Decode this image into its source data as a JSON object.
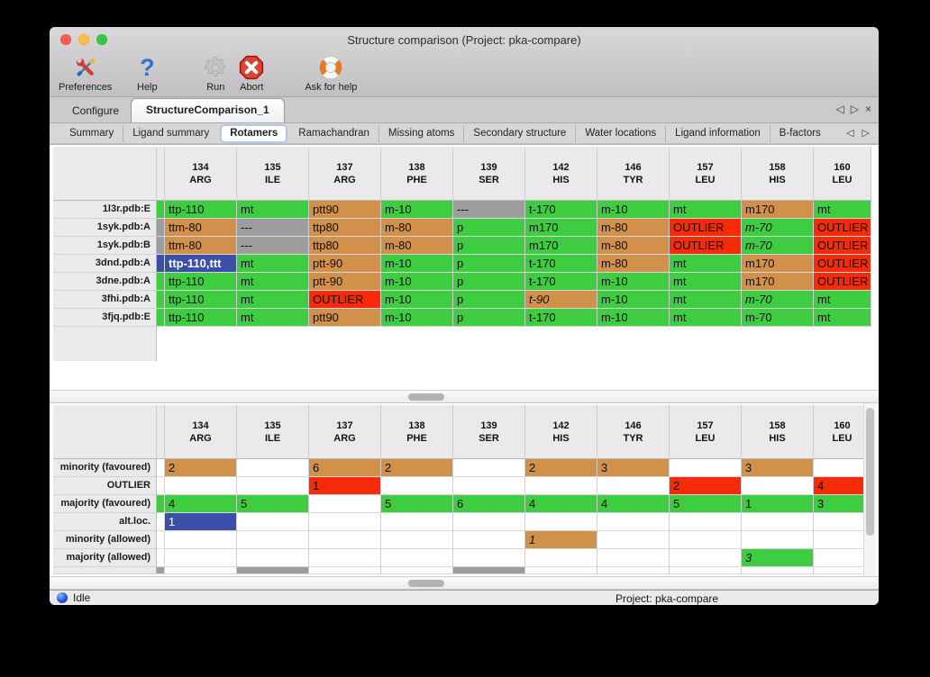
{
  "window": {
    "title": "Structure comparison (Project: pka-compare)"
  },
  "icons": {
    "prev": "◁",
    "next": "▷",
    "close": "×"
  },
  "toolbar": {
    "items": [
      {
        "name": "preferences",
        "label": "Preferences",
        "icon": "tools-icon",
        "disabled": false
      },
      {
        "name": "help",
        "label": "Help",
        "icon": "question-icon",
        "disabled": false
      },
      {
        "name": "run",
        "label": "Run",
        "icon": "gear-icon",
        "disabled": true
      },
      {
        "name": "abort",
        "label": "Abort",
        "icon": "stop-icon",
        "disabled": false
      },
      {
        "name": "ask-for-help",
        "label": "Ask for help",
        "icon": "lifebuoy-icon",
        "disabled": false
      }
    ]
  },
  "tabs": {
    "items": [
      {
        "label": "Configure",
        "active": false
      },
      {
        "label": "StructureComparison_1",
        "active": true
      }
    ]
  },
  "subtabs": {
    "items": [
      {
        "label": "Summary",
        "active": false
      },
      {
        "label": "Ligand summary",
        "active": false
      },
      {
        "label": "Rotamers",
        "active": true
      },
      {
        "label": "Ramachandran",
        "active": false
      },
      {
        "label": "Missing atoms",
        "active": false
      },
      {
        "label": "Secondary structure",
        "active": false
      },
      {
        "label": "Water locations",
        "active": false
      },
      {
        "label": "Ligand information",
        "active": false
      },
      {
        "label": "B-factors",
        "active": false
      }
    ]
  },
  "colors": {
    "green": "#3ecd41",
    "orange": "#d2914a",
    "red": "#f52b0a",
    "gray": "#9d9d9d",
    "blue": "#3c4fa8"
  },
  "columns": [
    {
      "num": "134",
      "res": "ARG"
    },
    {
      "num": "135",
      "res": "ILE"
    },
    {
      "num": "137",
      "res": "ARG"
    },
    {
      "num": "138",
      "res": "PHE"
    },
    {
      "num": "139",
      "res": "SER"
    },
    {
      "num": "142",
      "res": "HIS"
    },
    {
      "num": "146",
      "res": "TYR"
    },
    {
      "num": "157",
      "res": "LEU"
    },
    {
      "num": "158",
      "res": "HIS"
    },
    {
      "num": "160",
      "res": "LEU"
    }
  ],
  "structures_table": {
    "rows": [
      {
        "label": "1l3r.pdb:E",
        "sliver": "green",
        "cells": [
          {
            "t": "ttp-110",
            "c": "green"
          },
          {
            "t": "mt",
            "c": "green"
          },
          {
            "t": "ptt90",
            "c": "orange"
          },
          {
            "t": "m-10",
            "c": "green"
          },
          {
            "t": "---",
            "c": "gray"
          },
          {
            "t": "t-170",
            "c": "green"
          },
          {
            "t": "m-10",
            "c": "green"
          },
          {
            "t": "mt",
            "c": "green"
          },
          {
            "t": "m170",
            "c": "orange"
          },
          {
            "t": "mt",
            "c": "green"
          }
        ]
      },
      {
        "label": "1syk.pdb:A",
        "sliver": "gray",
        "cells": [
          {
            "t": "ttm-80",
            "c": "orange"
          },
          {
            "t": "---",
            "c": "gray"
          },
          {
            "t": "ttp80",
            "c": "orange"
          },
          {
            "t": "m-80",
            "c": "orange"
          },
          {
            "t": "p",
            "c": "green"
          },
          {
            "t": "m170",
            "c": "green"
          },
          {
            "t": "m-80",
            "c": "orange"
          },
          {
            "t": "OUTLIER",
            "c": "red"
          },
          {
            "t": "m-70",
            "c": "green",
            "i": true
          },
          {
            "t": "OUTLIER",
            "c": "red"
          }
        ]
      },
      {
        "label": "1syk.pdb:B",
        "sliver": "gray",
        "cells": [
          {
            "t": "ttm-80",
            "c": "orange"
          },
          {
            "t": "---",
            "c": "gray"
          },
          {
            "t": "ttp80",
            "c": "orange"
          },
          {
            "t": "m-80",
            "c": "orange"
          },
          {
            "t": "p",
            "c": "green"
          },
          {
            "t": "m170",
            "c": "green"
          },
          {
            "t": "m-80",
            "c": "orange"
          },
          {
            "t": "OUTLIER",
            "c": "red"
          },
          {
            "t": "m-70",
            "c": "green",
            "i": true
          },
          {
            "t": "OUTLIER",
            "c": "red"
          }
        ]
      },
      {
        "label": "3dnd.pdb:A",
        "sliver": "blue",
        "cells": [
          {
            "t": "ttp-110,ttt",
            "c": "blue",
            "white": true,
            "b": true
          },
          {
            "t": "mt",
            "c": "green"
          },
          {
            "t": "ptt-90",
            "c": "orange"
          },
          {
            "t": "m-10",
            "c": "green"
          },
          {
            "t": "p",
            "c": "green"
          },
          {
            "t": "t-170",
            "c": "green"
          },
          {
            "t": "m-80",
            "c": "orange"
          },
          {
            "t": "mt",
            "c": "green"
          },
          {
            "t": "m170",
            "c": "orange"
          },
          {
            "t": "OUTLIER",
            "c": "red"
          }
        ]
      },
      {
        "label": "3dne.pdb:A",
        "sliver": "green",
        "cells": [
          {
            "t": "ttp-110",
            "c": "green"
          },
          {
            "t": "mt",
            "c": "green"
          },
          {
            "t": "ptt-90",
            "c": "orange"
          },
          {
            "t": "m-10",
            "c": "green"
          },
          {
            "t": "p",
            "c": "green"
          },
          {
            "t": "t-170",
            "c": "green"
          },
          {
            "t": "m-10",
            "c": "green"
          },
          {
            "t": "mt",
            "c": "green"
          },
          {
            "t": "m170",
            "c": "orange"
          },
          {
            "t": "OUTLIER",
            "c": "red"
          }
        ]
      },
      {
        "label": "3fhi.pdb:A",
        "sliver": "green",
        "cells": [
          {
            "t": "ttp-110",
            "c": "green"
          },
          {
            "t": "mt",
            "c": "green"
          },
          {
            "t": "OUTLIER",
            "c": "red"
          },
          {
            "t": "m-10",
            "c": "green"
          },
          {
            "t": "p",
            "c": "green"
          },
          {
            "t": "t-90",
            "c": "orange",
            "i": true
          },
          {
            "t": "m-10",
            "c": "green"
          },
          {
            "t": "mt",
            "c": "green"
          },
          {
            "t": "m-70",
            "c": "green",
            "i": true
          },
          {
            "t": "mt",
            "c": "green"
          }
        ]
      },
      {
        "label": "3fjq.pdb:E",
        "sliver": "green",
        "cells": [
          {
            "t": "ttp-110",
            "c": "green"
          },
          {
            "t": "mt",
            "c": "green"
          },
          {
            "t": "ptt90",
            "c": "orange"
          },
          {
            "t": "m-10",
            "c": "green"
          },
          {
            "t": "p",
            "c": "green"
          },
          {
            "t": "t-170",
            "c": "green"
          },
          {
            "t": "m-10",
            "c": "green"
          },
          {
            "t": "mt",
            "c": "green"
          },
          {
            "t": "m-70",
            "c": "green"
          },
          {
            "t": "mt",
            "c": "green"
          }
        ]
      }
    ]
  },
  "summary_table": {
    "rows": [
      {
        "label": "minority (favoured)",
        "sliver": null,
        "cells": [
          {
            "t": "2",
            "c": "orange"
          },
          null,
          {
            "t": "6",
            "c": "orange"
          },
          {
            "t": "2",
            "c": "orange"
          },
          null,
          {
            "t": "2",
            "c": "orange"
          },
          {
            "t": "3",
            "c": "orange"
          },
          null,
          {
            "t": "3",
            "c": "orange"
          },
          null
        ]
      },
      {
        "label": "OUTLIER",
        "sliver": null,
        "cells": [
          null,
          null,
          {
            "t": "1",
            "c": "red"
          },
          null,
          null,
          null,
          null,
          {
            "t": "2",
            "c": "red"
          },
          null,
          {
            "t": "4",
            "c": "red"
          }
        ]
      },
      {
        "label": "majority (favoured)",
        "sliver": "green",
        "cells": [
          {
            "t": "4",
            "c": "green"
          },
          {
            "t": "5",
            "c": "green"
          },
          null,
          {
            "t": "5",
            "c": "green"
          },
          {
            "t": "6",
            "c": "green"
          },
          {
            "t": "4",
            "c": "green"
          },
          {
            "t": "4",
            "c": "green"
          },
          {
            "t": "5",
            "c": "green"
          },
          {
            "t": "1",
            "c": "green"
          },
          {
            "t": "3",
            "c": "green"
          }
        ]
      },
      {
        "label": "alt.loc.",
        "sliver": null,
        "cells": [
          {
            "t": "1",
            "c": "blue",
            "white": true
          },
          null,
          null,
          null,
          null,
          null,
          null,
          null,
          null,
          null
        ]
      },
      {
        "label": "minority (allowed)",
        "sliver": null,
        "cells": [
          null,
          null,
          null,
          null,
          null,
          {
            "t": "1",
            "c": "orange",
            "i": true
          },
          null,
          null,
          null,
          null
        ]
      },
      {
        "label": "majority (allowed)",
        "sliver": null,
        "cells": [
          null,
          null,
          null,
          null,
          null,
          null,
          null,
          null,
          {
            "t": "3",
            "c": "green",
            "i": true
          },
          null
        ]
      }
    ],
    "partial_row": {
      "sliver": "gray",
      "cells": [
        null,
        {
          "c": "gray"
        },
        null,
        null,
        {
          "c": "gray"
        },
        null,
        null,
        null,
        null,
        null
      ]
    }
  },
  "statusbar": {
    "status": "Idle",
    "project": "Project: pka-compare"
  }
}
